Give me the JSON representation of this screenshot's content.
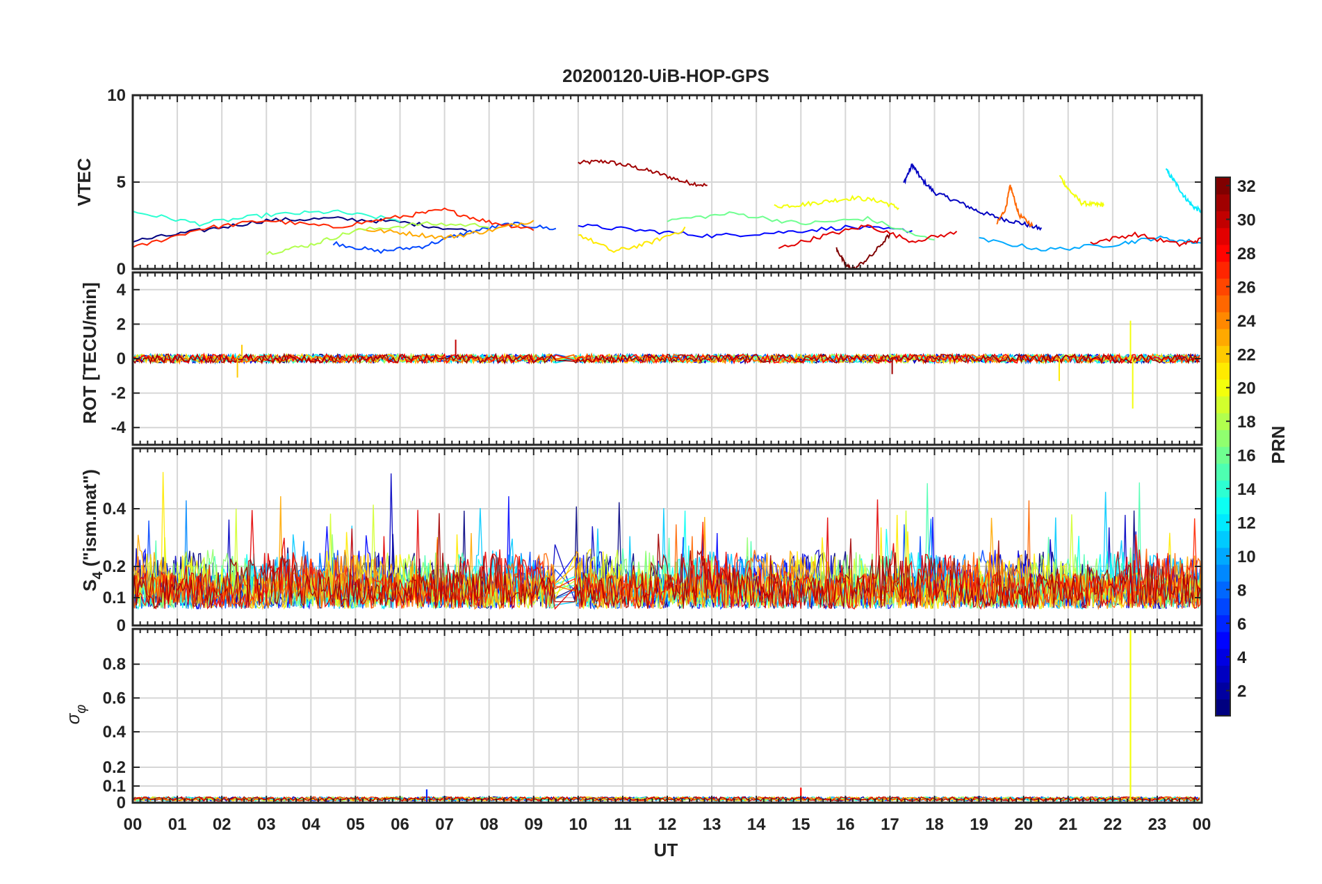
{
  "chart_data": [
    {
      "type": "line",
      "panel": "vtec",
      "title": "20200120-UiB-HOP-GPS",
      "ylabel": "VTEC",
      "xlabel": "",
      "xlim": [
        0,
        24
      ],
      "ylim": [
        0,
        10
      ],
      "yticks": [
        0,
        5,
        10
      ],
      "grid": true,
      "series": [
        {
          "name": "PRN 31",
          "prn": 31,
          "x": [
            10.0,
            10.6,
            11.2,
            11.8,
            12.4,
            12.9
          ],
          "y": [
            6.1,
            6.2,
            5.9,
            5.5,
            5.0,
            4.8
          ]
        },
        {
          "name": "PRN 3",
          "prn": 3,
          "x": [
            17.3,
            17.5,
            17.7,
            18.0,
            18.5,
            19.0,
            19.5,
            20.0,
            20.4
          ],
          "y": [
            4.9,
            6.0,
            5.2,
            4.4,
            3.9,
            3.3,
            2.9,
            2.6,
            2.3
          ]
        },
        {
          "name": "PRN 20",
          "prn": 20,
          "x": [
            20.8,
            21.0,
            21.3,
            21.6,
            21.8
          ],
          "y": [
            5.4,
            4.6,
            3.8,
            3.7,
            3.7
          ]
        },
        {
          "name": "PRN 12",
          "prn": 12,
          "x": [
            23.2,
            23.4,
            23.6,
            23.8,
            24.0
          ],
          "y": [
            5.7,
            5.0,
            4.2,
            3.6,
            3.3
          ]
        },
        {
          "name": "PRN 25",
          "prn": 25,
          "x": [
            19.4,
            19.6,
            19.7,
            19.9,
            20.2
          ],
          "y": [
            2.6,
            3.5,
            4.8,
            3.1,
            2.5
          ]
        },
        {
          "name": "PRN 20b",
          "prn": 20,
          "x": [
            14.4,
            15.0,
            15.6,
            16.2,
            16.8,
            17.2
          ],
          "y": [
            3.6,
            3.7,
            3.9,
            4.1,
            3.9,
            3.5
          ]
        },
        {
          "name": "PRN 1",
          "prn": 1,
          "x": [
            0.0,
            1.5,
            3.0,
            4.5,
            6.0,
            7.5
          ],
          "y": [
            1.6,
            2.2,
            2.8,
            2.9,
            2.7,
            2.2
          ]
        },
        {
          "name": "PRN 7",
          "prn": 7,
          "x": [
            4.5,
            5.5,
            6.5,
            7.5,
            8.5,
            9.5
          ],
          "y": [
            1.5,
            1.0,
            1.3,
            2.1,
            2.6,
            2.3
          ]
        },
        {
          "name": "PRN 14",
          "prn": 14,
          "x": [
            0.0,
            1.5,
            3.0,
            4.5,
            6.0
          ],
          "y": [
            3.3,
            2.6,
            3.1,
            3.3,
            2.8
          ]
        },
        {
          "name": "PRN 27",
          "prn": 27,
          "x": [
            0.0,
            1.5,
            3.0,
            4.5,
            6.0,
            7.0,
            8.0,
            9.0
          ],
          "y": [
            1.2,
            2.3,
            2.8,
            2.4,
            3.0,
            3.4,
            2.7,
            2.3
          ]
        },
        {
          "name": "PRN 23",
          "prn": 23,
          "x": [
            5.0,
            6.0,
            7.0,
            8.0,
            9.0
          ],
          "y": [
            2.3,
            2.1,
            1.8,
            2.2,
            2.8
          ]
        },
        {
          "name": "PRN 18",
          "prn": 18,
          "x": [
            3.0,
            4.0,
            5.0,
            6.5,
            8.0
          ],
          "y": [
            0.9,
            1.4,
            2.2,
            2.6,
            2.5
          ]
        },
        {
          "name": "PRN 5",
          "prn": 5,
          "x": [
            10.0,
            11.5,
            13.0,
            14.5,
            16.0,
            17.5
          ],
          "y": [
            2.5,
            2.2,
            1.9,
            2.1,
            2.4,
            2.2
          ]
        },
        {
          "name": "PRN 21",
          "prn": 21,
          "x": [
            10.0,
            10.8,
            11.6,
            12.4
          ],
          "y": [
            2.0,
            1.0,
            1.5,
            2.3
          ]
        },
        {
          "name": "PRN 16",
          "prn": 16,
          "x": [
            12.0,
            13.5,
            15.0,
            16.5,
            18.0
          ],
          "y": [
            2.8,
            3.2,
            2.6,
            2.9,
            1.6
          ]
        },
        {
          "name": "PRN 29",
          "prn": 29,
          "x": [
            14.5,
            15.5,
            16.5,
            17.5,
            18.5
          ],
          "y": [
            1.2,
            1.9,
            2.5,
            1.6,
            2.1
          ]
        },
        {
          "name": "PRN 32",
          "prn": 32,
          "x": [
            15.8,
            16.0,
            16.2,
            16.6,
            17.0
          ],
          "y": [
            1.2,
            0.2,
            0.0,
            0.8,
            2.0
          ]
        },
        {
          "name": "PRN 10",
          "prn": 10,
          "x": [
            19.0,
            20.5,
            22.0,
            23.0,
            24.0
          ],
          "y": [
            1.7,
            1.1,
            1.4,
            1.8,
            1.5
          ]
        },
        {
          "name": "PRN 29b",
          "prn": 29,
          "x": [
            21.5,
            22.5,
            23.5,
            24.0
          ],
          "y": [
            1.5,
            2.0,
            1.4,
            1.7
          ]
        }
      ]
    },
    {
      "type": "line",
      "panel": "rot",
      "ylabel": "ROT [TECU/min]",
      "xlim": [
        0,
        24
      ],
      "ylim": [
        -5,
        5
      ],
      "yticks": [
        -4,
        -2,
        0,
        2,
        4
      ],
      "grid": true,
      "spikes": [
        {
          "prn": 22,
          "x": 2.35,
          "y": -1.1
        },
        {
          "prn": 22,
          "x": 2.45,
          "y": 0.8
        },
        {
          "prn": 30,
          "x": 7.25,
          "y": 1.1
        },
        {
          "prn": 31,
          "x": 17.05,
          "y": -0.9
        },
        {
          "prn": 21,
          "x": 20.8,
          "y": -1.3
        },
        {
          "prn": 20,
          "x": 22.4,
          "y": 2.2
        },
        {
          "prn": 20,
          "x": 22.45,
          "y": -2.9
        }
      ]
    },
    {
      "type": "line",
      "panel": "s4",
      "ylabel": "S4 (\"ism.mat\")",
      "ylabel_main": "S",
      "ylabel_sub": "4",
      "ylabel_rest": " (\"ism.mat\")",
      "xlim": [
        0,
        24
      ],
      "ylim": [
        0,
        0.6
      ],
      "yticks": [
        0,
        0.1,
        0.2,
        0.4
      ],
      "grid": true
    },
    {
      "type": "line",
      "panel": "sigma-phi",
      "ylabel": "σφ",
      "ylabel_main": "σ",
      "ylabel_sub": "φ",
      "xlabel": "UT",
      "xlim": [
        0,
        24
      ],
      "ylim": [
        0,
        1
      ],
      "yticks": [
        0,
        0.1,
        0.2,
        0.4,
        0.6,
        0.8
      ],
      "grid": true,
      "spikes": [
        {
          "prn": 20,
          "x": 22.4,
          "y": 1.0
        },
        {
          "prn": 28,
          "x": 15.0,
          "y": 0.09
        },
        {
          "prn": 6,
          "x": 6.6,
          "y": 0.08
        }
      ]
    }
  ],
  "xaxis": {
    "label": "UT",
    "ticks": [
      "00",
      "01",
      "02",
      "03",
      "04",
      "05",
      "06",
      "07",
      "08",
      "09",
      "10",
      "11",
      "12",
      "13",
      "14",
      "15",
      "16",
      "17",
      "18",
      "19",
      "20",
      "21",
      "22",
      "23",
      "00"
    ]
  },
  "colorbar": {
    "label": "PRN",
    "min": 1,
    "max": 32,
    "ticks": [
      "2",
      "4",
      "6",
      "8",
      "10",
      "12",
      "14",
      "16",
      "18",
      "20",
      "22",
      "24",
      "26",
      "28",
      "30",
      "32"
    ]
  },
  "colors": {
    "grid": "#d6d6d6",
    "axis": "#262626"
  }
}
